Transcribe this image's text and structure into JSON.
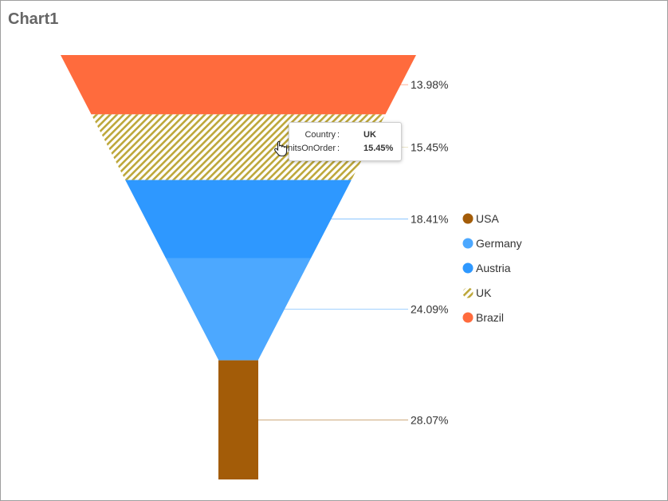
{
  "title": "Chart1",
  "chart_data": {
    "type": "funnel",
    "series": [
      {
        "name": "Brazil",
        "value": 13.98,
        "label": "13.98%",
        "color": "#FF6B3D",
        "pattern": "solid"
      },
      {
        "name": "UK",
        "value": 15.45,
        "label": "15.45%",
        "color": "#BDA73A",
        "pattern": "diagonal-stripes"
      },
      {
        "name": "Austria",
        "value": 18.41,
        "label": "18.41%",
        "color": "#2E98FF",
        "pattern": "solid"
      },
      {
        "name": "Germany",
        "value": 24.09,
        "label": "24.09%",
        "color": "#4CA8FF",
        "pattern": "solid"
      },
      {
        "name": "USA",
        "value": 28.07,
        "label": "28.07%",
        "color": "#A35C08",
        "pattern": "solid"
      }
    ],
    "legend": [
      "USA",
      "Germany",
      "Austria",
      "UK",
      "Brazil"
    ],
    "legend_position": "right"
  },
  "tooltip": {
    "rows": [
      {
        "key": "Country",
        "value": "UK"
      },
      {
        "key": "UnitsOnOrder",
        "value": "15.45%"
      }
    ]
  }
}
